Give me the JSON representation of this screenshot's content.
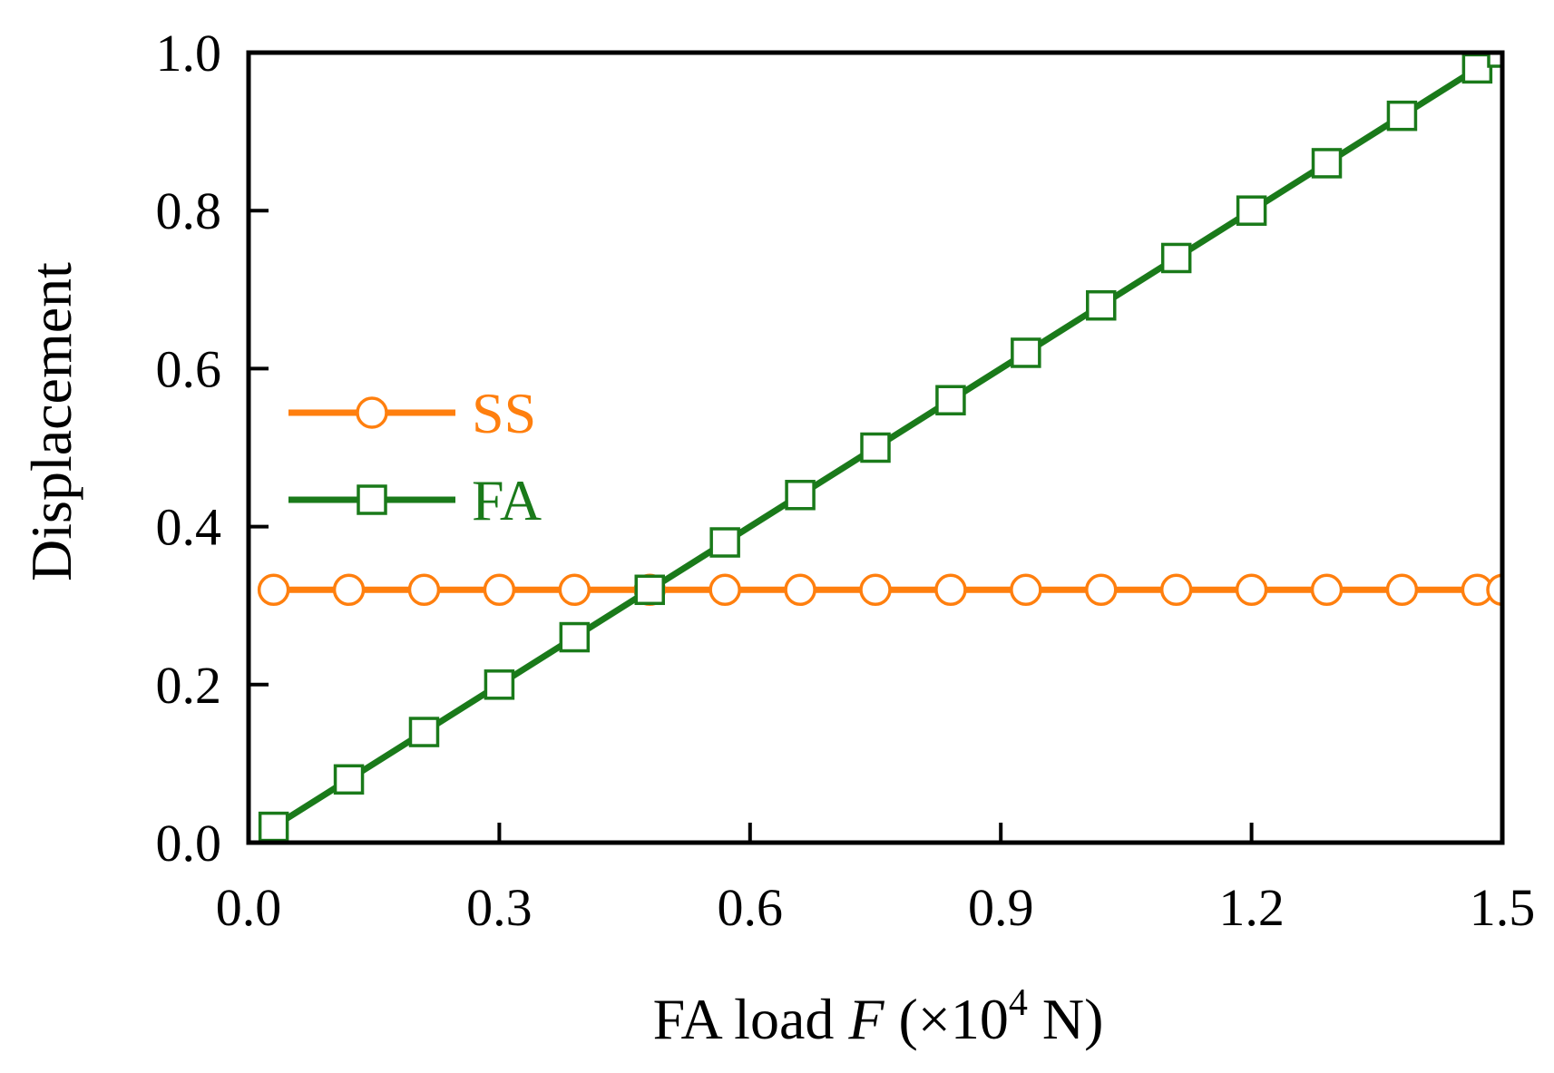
{
  "chart_data": {
    "type": "line",
    "xlabel_parts": {
      "prefix": "FA load ",
      "variable": "F",
      "unit_open": " (×10",
      "exponent": "4",
      "unit_close": " N)"
    },
    "ylabel": "Displacement",
    "xlim": [
      0.0,
      1.5
    ],
    "ylim": [
      0.0,
      1.0
    ],
    "xticks": [
      "0.0",
      "0.3",
      "0.6",
      "0.9",
      "1.2",
      "1.5"
    ],
    "yticks": [
      "0.0",
      "0.2",
      "0.4",
      "0.6",
      "0.8",
      "1.0"
    ],
    "legend_position": "middle-left",
    "grid": false,
    "series": [
      {
        "name": "SS",
        "color": "#ff7f0e",
        "marker": "circle",
        "x": [
          0.03,
          0.12,
          0.21,
          0.3,
          0.39,
          0.48,
          0.57,
          0.66,
          0.75,
          0.84,
          0.93,
          1.02,
          1.11,
          1.2,
          1.29,
          1.38,
          1.47,
          1.5
        ],
        "y": [
          0.32,
          0.32,
          0.32,
          0.32,
          0.32,
          0.32,
          0.32,
          0.32,
          0.32,
          0.32,
          0.32,
          0.32,
          0.32,
          0.32,
          0.32,
          0.32,
          0.32,
          0.32
        ]
      },
      {
        "name": "FA",
        "color": "#1a7a1a",
        "marker": "square",
        "x": [
          0.03,
          0.12,
          0.21,
          0.3,
          0.39,
          0.48,
          0.57,
          0.66,
          0.75,
          0.84,
          0.93,
          1.02,
          1.11,
          1.2,
          1.29,
          1.38,
          1.47,
          1.5
        ],
        "y": [
          0.02,
          0.08,
          0.14,
          0.2,
          0.26,
          0.32,
          0.38,
          0.44,
          0.5,
          0.56,
          0.62,
          0.68,
          0.74,
          0.8,
          0.86,
          0.92,
          0.98,
          1.0
        ]
      }
    ]
  }
}
